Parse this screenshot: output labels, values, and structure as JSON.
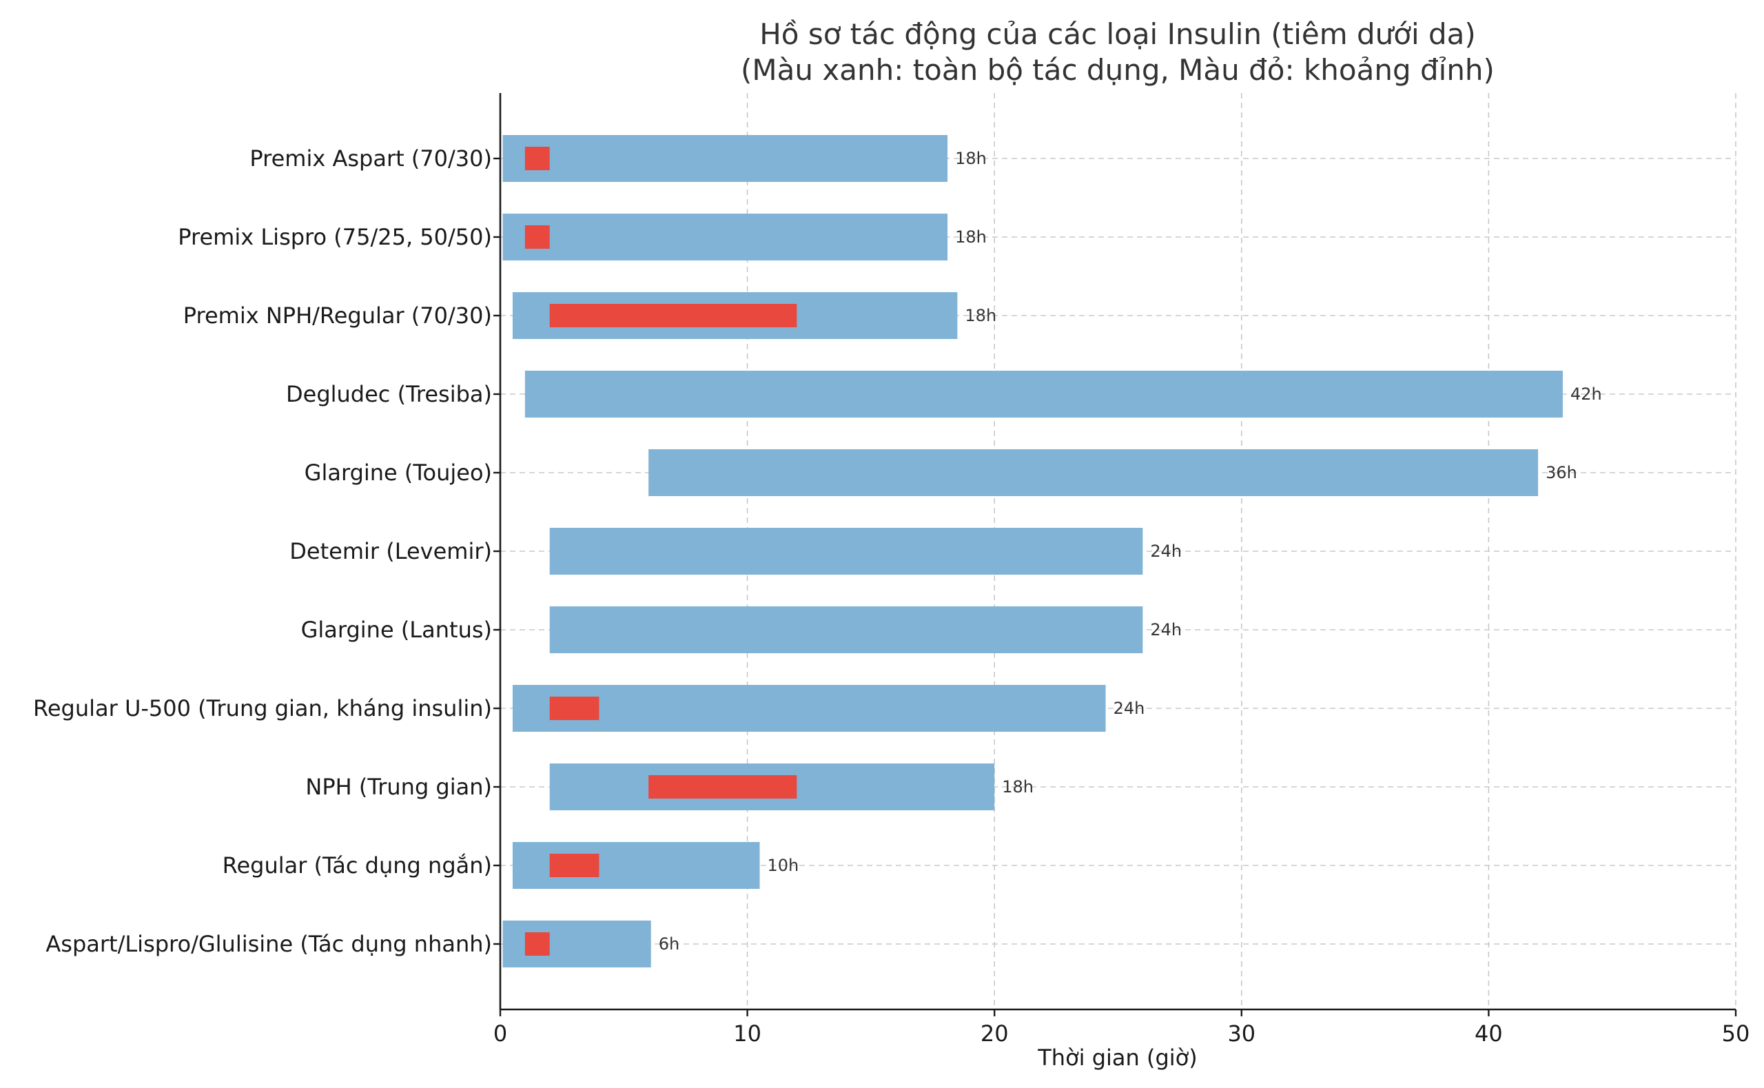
{
  "chart_data": {
    "type": "bar",
    "orientation": "horizontal",
    "title_lines": [
      "Hồ sơ tác động của các loại Insulin (tiêm dưới da)",
      "(Màu xanh: toàn bộ tác dụng, Màu đỏ: khoảng đỉnh)"
    ],
    "xlabel": "Thời gian (giờ)",
    "ylabel": "",
    "xlim": [
      0,
      50
    ],
    "xticks": [
      0,
      10,
      20,
      30,
      40,
      50
    ],
    "grid": true,
    "colors": {
      "duration": "#80b3d6",
      "peak": "#e8483d"
    },
    "categories": [
      "Premix Aspart (70/30)",
      "Premix Lispro (75/25, 50/50)",
      "Premix NPH/Regular (70/30)",
      "Degludec (Tresiba)",
      "Glargine (Toujeo)",
      "Detemir (Levemir)",
      "Glargine (Lantus)",
      "Regular U-500 (Trung gian, kháng insulin)",
      "NPH (Trung gian)",
      "Regular (Tác dụng ngắn)",
      "Aspart/Lispro/Glulisine (Tác dụng nhanh)"
    ],
    "series": [
      {
        "name": "Màu xanh: toàn bộ tác dụng",
        "ranges": [
          [
            0.1,
            18.1
          ],
          [
            0.1,
            18.1
          ],
          [
            0.5,
            18.5
          ],
          [
            1,
            43
          ],
          [
            6,
            42
          ],
          [
            2,
            26
          ],
          [
            2,
            26
          ],
          [
            0.5,
            24.5
          ],
          [
            2,
            20
          ],
          [
            0.5,
            10.5
          ],
          [
            0.1,
            6.1
          ]
        ],
        "labels": [
          "18h",
          "18h",
          "18h",
          "42h",
          "36h",
          "24h",
          "24h",
          "24h",
          "18h",
          "10h",
          "6h"
        ]
      },
      {
        "name": "Màu đỏ: khoảng đỉnh",
        "ranges": [
          [
            1,
            2
          ],
          [
            1,
            2
          ],
          [
            2,
            12
          ],
          null,
          null,
          null,
          null,
          [
            2,
            4
          ],
          [
            6,
            12
          ],
          [
            2,
            4
          ],
          [
            1,
            2
          ]
        ]
      }
    ]
  }
}
